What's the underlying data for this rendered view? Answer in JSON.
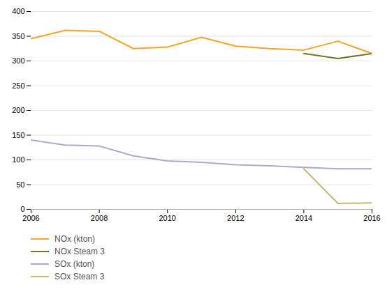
{
  "chart_data": {
    "type": "line",
    "x": [
      2006,
      2007,
      2008,
      2009,
      2010,
      2011,
      2012,
      2013,
      2014,
      2015,
      2016
    ],
    "series": [
      {
        "name": "NOx (kton)",
        "color": "#F5A623",
        "values": [
          345,
          362,
          360,
          325,
          328,
          348,
          330,
          325,
          322,
          340,
          315
        ]
      },
      {
        "name": "NOx Steam 3",
        "color": "#6B7A2A",
        "values": [
          null,
          null,
          null,
          null,
          null,
          null,
          null,
          null,
          315,
          305,
          315
        ]
      },
      {
        "name": "SOx (kton)",
        "color": "#AAAACC",
        "values": [
          140,
          130,
          128,
          108,
          98,
          95,
          90,
          88,
          85,
          82,
          82
        ]
      },
      {
        "name": "SOx Steam 3",
        "color": "#C8B870",
        "values": [
          null,
          null,
          null,
          null,
          null,
          null,
          null,
          null,
          82,
          12,
          13
        ]
      }
    ],
    "xlim": [
      2006,
      2016
    ],
    "ylim": [
      0,
      400
    ],
    "xticks": [
      2006,
      2008,
      2010,
      2012,
      2014,
      2016
    ],
    "yticks": [
      0,
      50,
      100,
      150,
      200,
      250,
      300,
      350,
      400
    ],
    "grid": true,
    "legend": "bottom"
  }
}
